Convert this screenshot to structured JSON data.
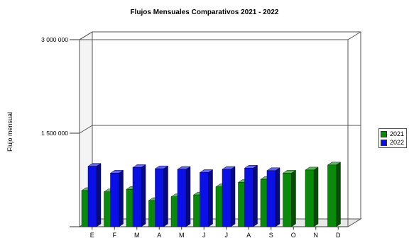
{
  "chart_data": {
    "type": "bar",
    "title": "Flujos Mensuales Comparativos 2021 - 2022",
    "xlabel": "",
    "ylabel": "Flujo mensual",
    "ylim": [
      0,
      3000000
    ],
    "yticks": [
      0,
      1500000,
      3000000
    ],
    "ytick_labels": [
      "",
      "1 500 000",
      "3 000 000"
    ],
    "categories": [
      "E",
      "F",
      "M",
      "A",
      "M",
      "J",
      "J",
      "A",
      "S",
      "O",
      "N",
      "D"
    ],
    "series": [
      {
        "name": "2021",
        "color": "#0a8a0a",
        "values": [
          580000,
          560000,
          600000,
          420000,
          480000,
          510000,
          640000,
          710000,
          760000,
          860000,
          910000,
          990000
        ]
      },
      {
        "name": "2022",
        "color": "#0a10e6",
        "values": [
          970000,
          860000,
          950000,
          930000,
          920000,
          870000,
          920000,
          940000,
          900000,
          null,
          null,
          null
        ]
      }
    ],
    "legend_position": "right",
    "grid": true,
    "style": "3d"
  }
}
